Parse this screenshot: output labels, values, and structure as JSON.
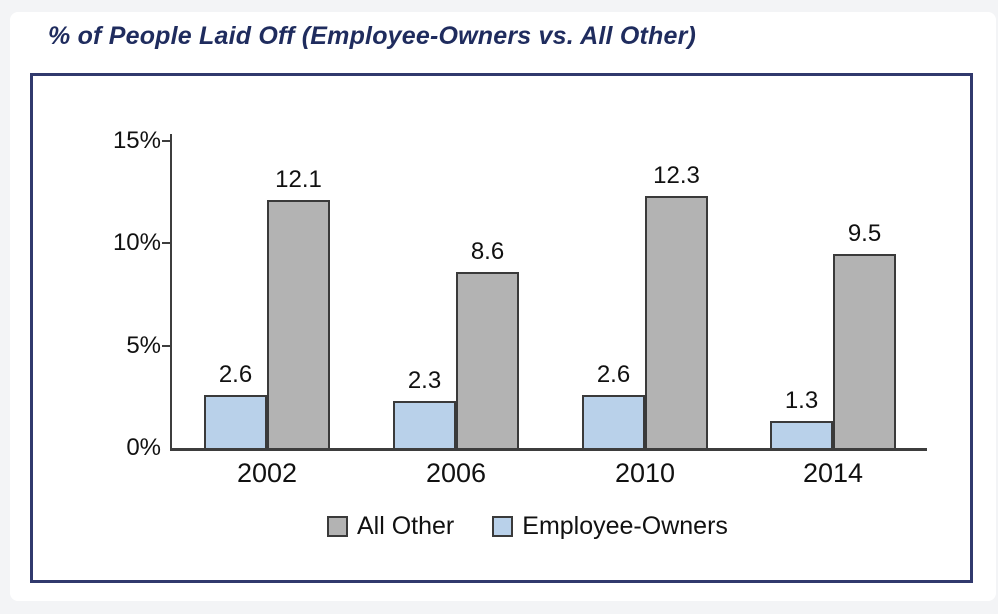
{
  "title": "% of People Laid Off (Employee-Owners vs. All Other)",
  "colors": {
    "page_background": "#f3f4f6",
    "card_background": "#ffffff",
    "title_navy": "#1f2c5e",
    "frame_border": "#31396d",
    "axis": "#3d3d3d",
    "bar_border": "#3a3a3a",
    "all_other_fill": "#b3b3b3",
    "employee_owners_fill": "#b9d1ea",
    "text": "#111111"
  },
  "chart_data": {
    "type": "bar",
    "title": "% of People Laid Off (Employee-Owners vs. All Other)",
    "categories": [
      "2002",
      "2006",
      "2010",
      "2014"
    ],
    "series": [
      {
        "name": "Employee-Owners",
        "color": "#b9d1ea",
        "values": [
          2.6,
          2.3,
          2.6,
          1.3
        ],
        "labels": [
          "2.6",
          "2.3",
          "2.6",
          "1.3"
        ]
      },
      {
        "name": "All Other",
        "color": "#b3b3b3",
        "values": [
          12.1,
          8.6,
          12.3,
          9.5
        ],
        "labels": [
          "12.1",
          "8.6",
          "12.3",
          "9.5"
        ]
      }
    ],
    "xlabel": "",
    "ylabel": "",
    "ylim": [
      0,
      15
    ],
    "yticks": [
      {
        "value": 15,
        "label": "15%"
      },
      {
        "value": 10,
        "label": "10%"
      },
      {
        "value": 5,
        "label": "5%"
      },
      {
        "value": 0,
        "label": "0%"
      }
    ],
    "grid": false,
    "legend_position": "bottom",
    "legend": [
      {
        "label": "All Other",
        "color": "#b3b3b3"
      },
      {
        "label": "Employee-Owners",
        "color": "#b9d1ea"
      }
    ]
  }
}
